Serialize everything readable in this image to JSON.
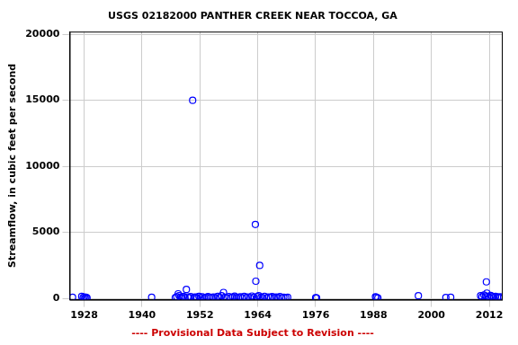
{
  "chart_data": {
    "type": "scatter",
    "title": "USGS 02182000 PANTHER CREEK NEAR TOCCOA, GA",
    "y_label": "Streamflow, in cubic feet per second",
    "footer": "---- Provisional Data Subject to Revision ----",
    "x": [
      1925.6,
      1927.5,
      1927.8,
      1928.0,
      1928.2,
      1928.4,
      1928.6,
      1942.0,
      1946.9,
      1947.2,
      1947.5,
      1947.7,
      1948.0,
      1948.3,
      1948.6,
      1948.9,
      1949.2,
      1949.5,
      1949.8,
      1950.1,
      1950.5,
      1950.8,
      1951.1,
      1951.4,
      1951.8,
      1952.1,
      1952.5,
      1952.9,
      1953.3,
      1953.7,
      1954.1,
      1954.5,
      1954.9,
      1955.3,
      1955.7,
      1956.1,
      1956.5,
      1956.9,
      1957.2,
      1957.6,
      1958.0,
      1958.4,
      1958.8,
      1959.2,
      1959.6,
      1960.0,
      1960.4,
      1960.8,
      1961.2,
      1961.6,
      1962.0,
      1962.4,
      1962.8,
      1963.2,
      1963.5,
      1963.6,
      1963.9,
      1964.2,
      1964.4,
      1964.7,
      1965.0,
      1965.4,
      1965.8,
      1966.2,
      1966.6,
      1967.0,
      1967.4,
      1967.8,
      1968.2,
      1968.6,
      1969.0,
      1969.4,
      1969.8,
      1970.2,
      1976.0,
      1976.2,
      1988.4,
      1988.6,
      1988.9,
      1997.3,
      2003.0,
      2004.0,
      2010.2,
      2010.5,
      2010.9,
      2011.2,
      2011.4,
      2011.5,
      2011.7,
      2012.0,
      2012.3,
      2012.6,
      2012.9,
      2013.3,
      2013.7,
      2014.0,
      2014.3
    ],
    "values": [
      90,
      150,
      60,
      110,
      40,
      80,
      30,
      80,
      60,
      120,
      350,
      200,
      90,
      40,
      150,
      70,
      680,
      110,
      50,
      130,
      15000,
      80,
      100,
      40,
      160,
      60,
      120,
      30,
      90,
      140,
      50,
      80,
      110,
      30,
      150,
      70,
      200,
      450,
      90,
      40,
      130,
      60,
      100,
      170,
      50,
      90,
      120,
      40,
      150,
      70,
      110,
      60,
      180,
      80,
      5600,
      1300,
      140,
      200,
      2500,
      90,
      60,
      150,
      40,
      110,
      80,
      130,
      50,
      100,
      70,
      140,
      40,
      90,
      60,
      80,
      50,
      30,
      120,
      80,
      40,
      200,
      70,
      80,
      200,
      120,
      250,
      180,
      1250,
      400,
      150,
      90,
      220,
      130,
      60,
      150,
      100,
      80,
      120
    ],
    "color": "#0000ff",
    "marker": "circle",
    "xlim": [
      1925,
      2014.6
    ],
    "xticks": [
      1928,
      1940,
      1952,
      1964,
      1976,
      1988,
      2000,
      2012
    ],
    "ylim": [
      -100,
      20200
    ],
    "yticks": [
      0,
      5000,
      10000,
      15000,
      20000
    ],
    "grid": true
  }
}
